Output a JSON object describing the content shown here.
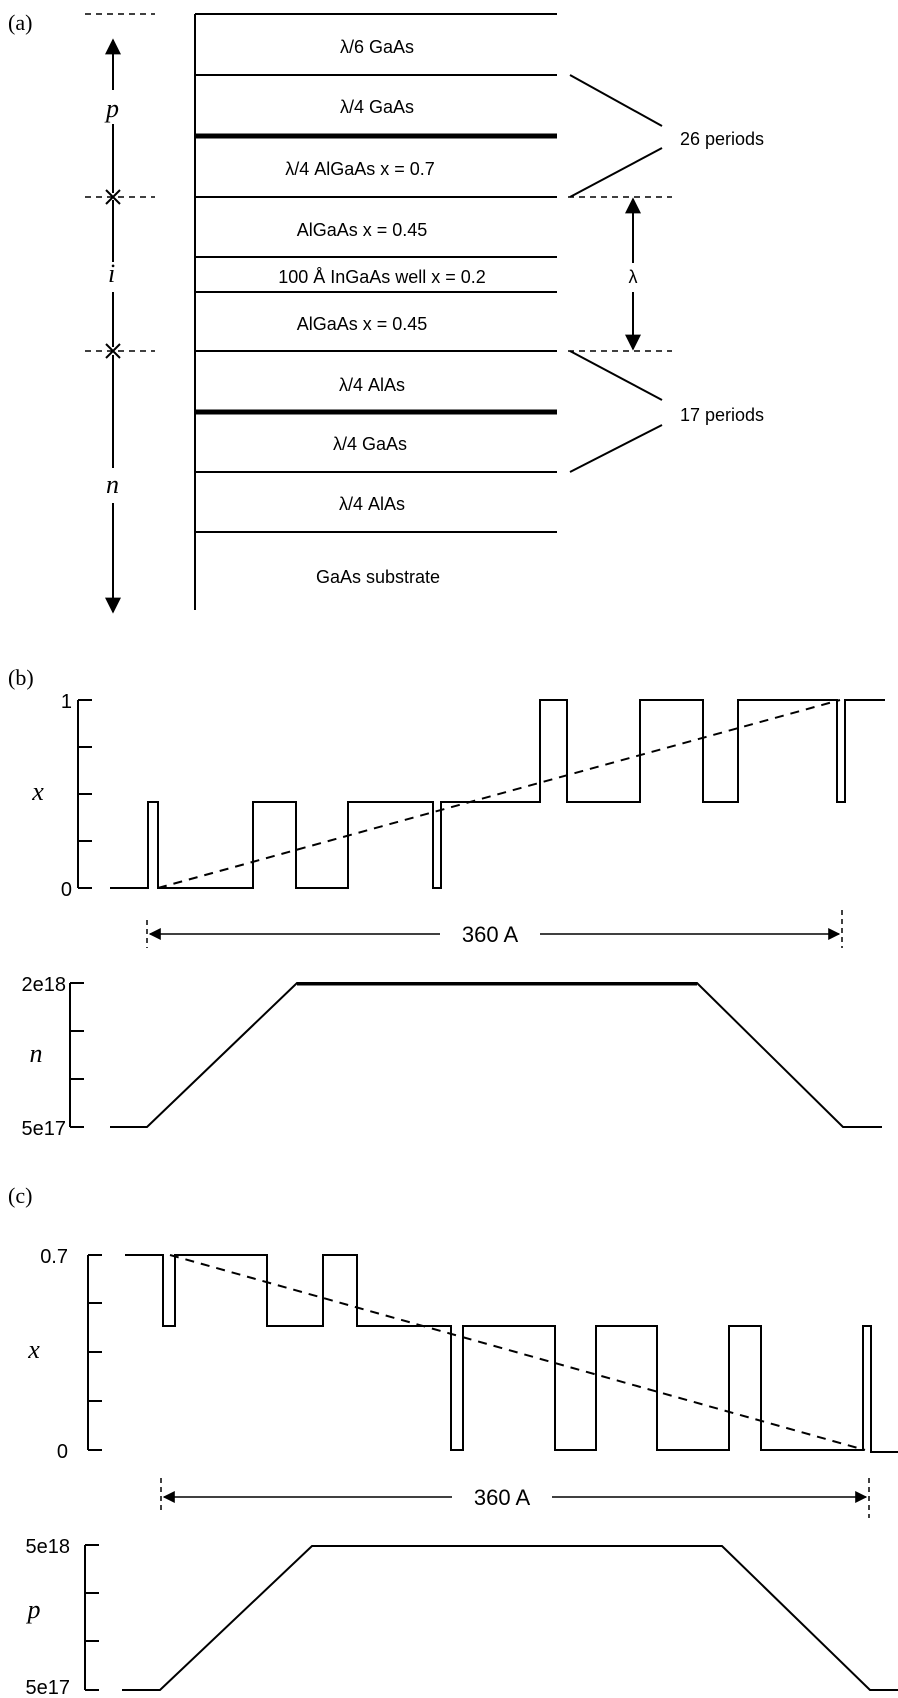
{
  "panel_a": {
    "label": "(a)",
    "region_labels": {
      "p": "p",
      "i": "i",
      "n": "n"
    },
    "layers": [
      "λ/6 GaAs",
      "λ/4 GaAs",
      "λ/4 AlGaAs  x = 0.7",
      "AlGaAs  x = 0.45",
      "100 Å InGaAs well x = 0.2",
      "AlGaAs  x = 0.45",
      "λ/4 AlAs",
      "λ/4 GaAs",
      "λ/4 AlAs",
      "GaAs substrate"
    ],
    "periods_top": "26 periods",
    "periods_bottom": "17 periods",
    "lambda_symbol": "λ"
  },
  "panel_b": {
    "label": "(b)",
    "x_axis_symbol": "x",
    "x_ticks": {
      "top": "1",
      "bottom": "0"
    },
    "dimension": "360 A",
    "n_axis_symbol": "n",
    "n_ticks": {
      "top": "2e18",
      "bottom": "5e17"
    }
  },
  "panel_c": {
    "label": "(c)",
    "x_axis_symbol": "x",
    "x_ticks": {
      "top": "0.7",
      "bottom": "0"
    },
    "dimension": "360 A",
    "p_axis_symbol": "p",
    "p_ticks": {
      "top": "5e18",
      "bottom": "5e17"
    }
  }
}
